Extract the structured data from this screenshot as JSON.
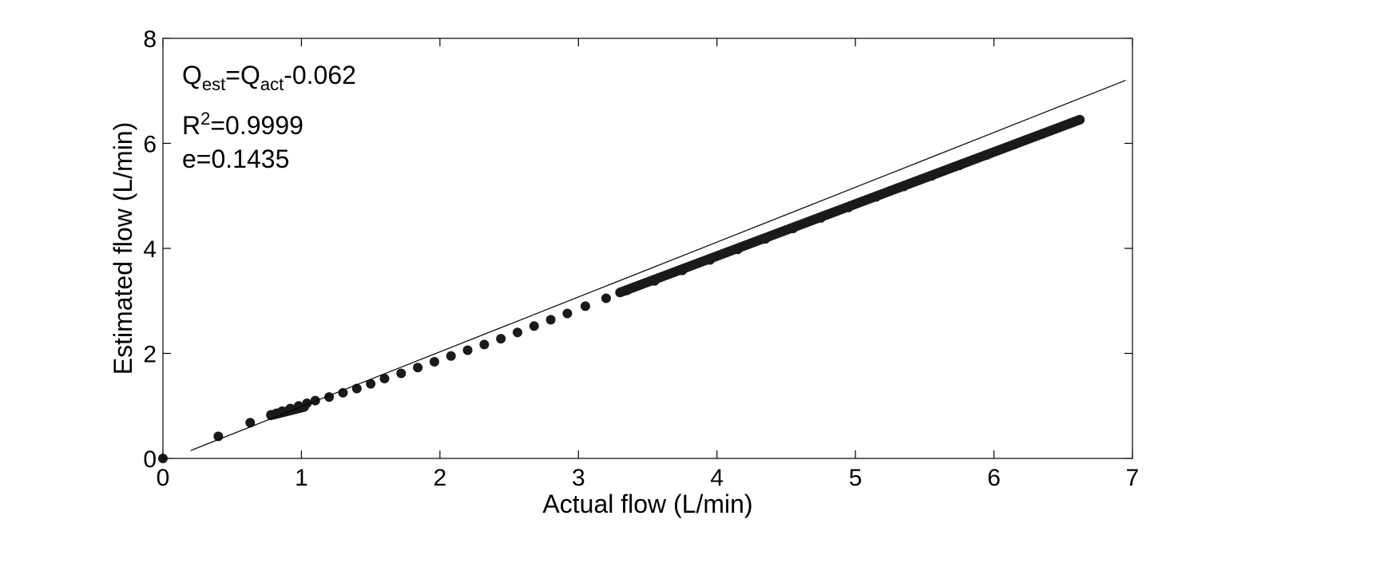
{
  "chart_data": {
    "type": "scatter",
    "xlabel": "Actual flow (L/min)",
    "ylabel": "Estimated flow (L/min)",
    "xlim": [
      0,
      7
    ],
    "ylim": [
      0,
      8
    ],
    "xticks": [
      "0",
      "1",
      "2",
      "3",
      "4",
      "5",
      "6",
      "7"
    ],
    "yticks": [
      "0",
      "2",
      "4",
      "6",
      "8"
    ],
    "grid": false,
    "marker_color": "#1a1a1a",
    "series": [
      {
        "type": "scatter",
        "points": [
          [
            0,
            0
          ],
          [
            0.4,
            0.42
          ],
          [
            0.63,
            0.68
          ],
          [
            0.78,
            0.83
          ],
          [
            0.82,
            0.86
          ],
          [
            0.86,
            0.9
          ],
          [
            0.92,
            0.95
          ],
          [
            0.98,
            1.0
          ],
          [
            1.04,
            1.05
          ],
          [
            1.1,
            1.1
          ],
          [
            1.2,
            1.17
          ],
          [
            1.3,
            1.25
          ],
          [
            1.4,
            1.33
          ],
          [
            1.5,
            1.42
          ],
          [
            1.6,
            1.52
          ],
          [
            1.72,
            1.62
          ],
          [
            1.84,
            1.73
          ],
          [
            1.96,
            1.84
          ],
          [
            2.08,
            1.95
          ],
          [
            2.2,
            2.06
          ],
          [
            2.32,
            2.17
          ],
          [
            2.44,
            2.28
          ],
          [
            2.56,
            2.4
          ],
          [
            2.68,
            2.52
          ],
          [
            2.8,
            2.64
          ],
          [
            2.92,
            2.76
          ],
          [
            3.05,
            2.9
          ],
          [
            3.2,
            3.05
          ],
          [
            3.35,
            3.2
          ],
          [
            3.55,
            3.38
          ],
          [
            3.75,
            3.58
          ],
          [
            3.95,
            3.78
          ],
          [
            4.15,
            3.98
          ],
          [
            4.35,
            4.18
          ],
          [
            4.55,
            4.38
          ],
          [
            4.75,
            4.58
          ],
          [
            4.95,
            4.78
          ],
          [
            5.15,
            4.98
          ],
          [
            5.35,
            5.18
          ],
          [
            5.55,
            5.38
          ],
          [
            5.75,
            5.58
          ],
          [
            5.95,
            5.78
          ],
          [
            6.15,
            5.98
          ],
          [
            6.35,
            6.18
          ],
          [
            6.55,
            6.38
          ],
          [
            6.62,
            6.45
          ]
        ],
        "dense_segments": [
          [
            0.78,
            0.82,
            1.02,
            0.98
          ],
          [
            3.3,
            3.16,
            6.62,
            6.45
          ]
        ]
      },
      {
        "type": "line",
        "x": [
          0.2,
          6.95
        ],
        "y": [
          0.15,
          7.2
        ]
      }
    ],
    "annotations": {
      "line1_q": "Q",
      "line1_est": "est",
      "line1_eq": "=Q",
      "line1_act": "act",
      "line1_tail": "-0.062",
      "line2_r": "R",
      "line2_sup": "2",
      "line2_tail": "=0.9999",
      "line3": "e=0.1435"
    }
  }
}
